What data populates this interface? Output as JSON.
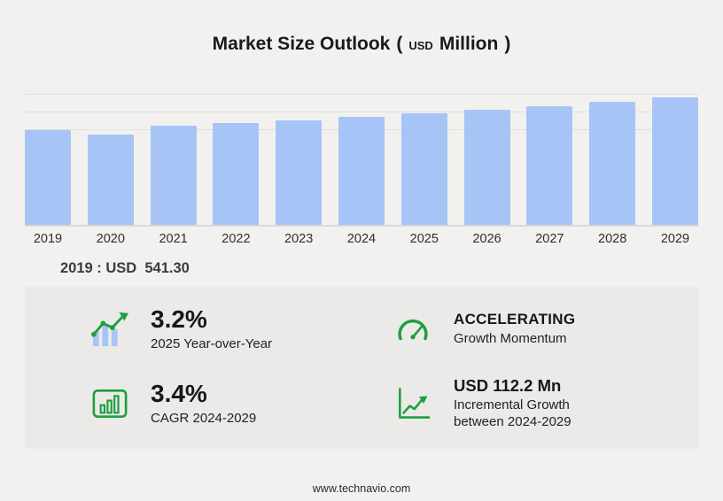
{
  "title": {
    "main": "Market Size Outlook",
    "paren_open": "(",
    "unit_small": "USD",
    "unit": "Million",
    "paren_close": ")"
  },
  "chart_data": {
    "type": "bar",
    "title": "Market Size Outlook (USD Million)",
    "categories": [
      "2019",
      "2020",
      "2021",
      "2022",
      "2023",
      "2024",
      "2025",
      "2026",
      "2027",
      "2028",
      "2029"
    ],
    "values": [
      541.3,
      515.0,
      566.0,
      583.0,
      600.0,
      617.2,
      636.9,
      658.0,
      681.0,
      704.5,
      729.4
    ],
    "xlabel": "",
    "ylabel": "",
    "ylim": [
      0,
      760
    ],
    "grid": true,
    "legend": "none",
    "annotation": "2019 : USD 541.30"
  },
  "annotation": {
    "text": "2019 : USD  541.30"
  },
  "stats": [
    {
      "icon": "yoy-bar-trend-icon",
      "value": "3.2%",
      "label": "2025 Year-over-Year"
    },
    {
      "icon": "speedometer-icon",
      "value": "ACCELERATING",
      "label": "Growth Momentum"
    },
    {
      "icon": "cagr-chart-icon",
      "value": "3.4%",
      "label": "CAGR 2024-2029"
    },
    {
      "icon": "incremental-growth-icon",
      "value": "USD 112.2 Mn",
      "label": "Incremental Growth between 2024-2029"
    }
  ],
  "footer": {
    "url": "www.technavio.com"
  },
  "colors": {
    "bar": "#a7c4f7",
    "accent_green": "#1f9e3e",
    "background": "#f2f1ef",
    "panel": "#ebeae8"
  }
}
